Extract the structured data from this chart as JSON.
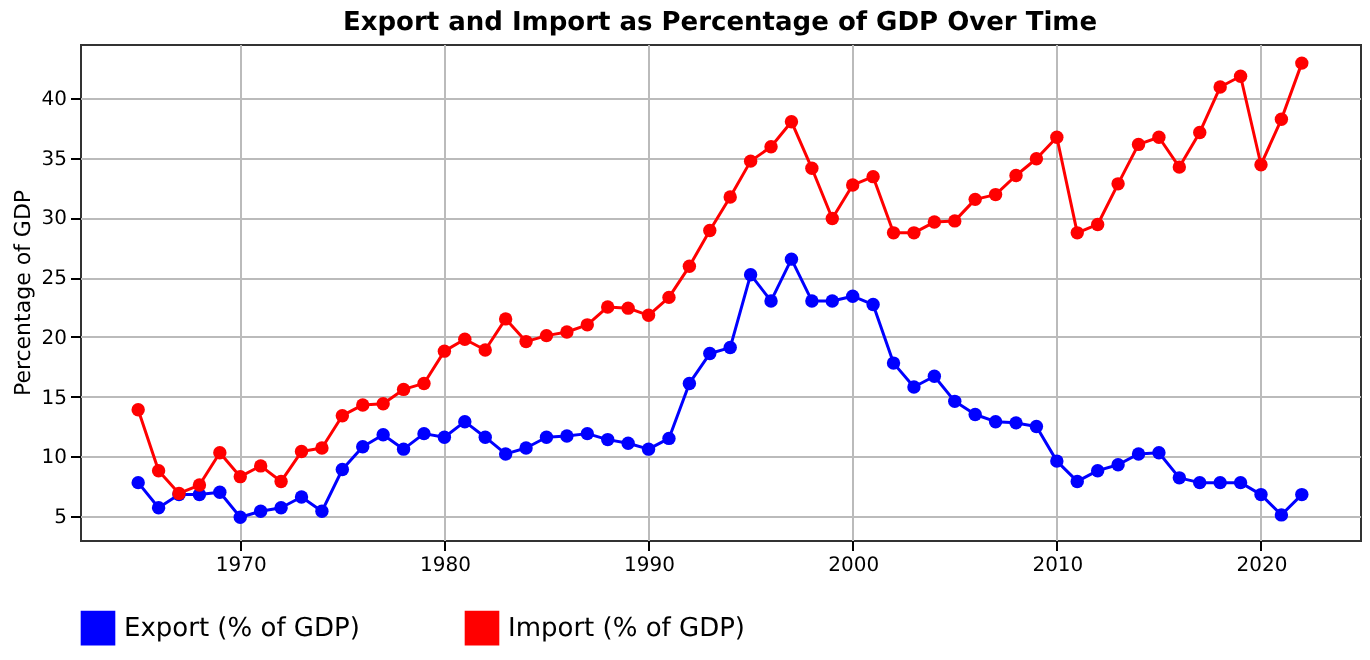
{
  "chart_data": {
    "type": "line",
    "title": "Export and Import as Percentage of GDP Over Time",
    "ylabel": "Percentage of GDP",
    "x": [
      1965,
      1966,
      1967,
      1968,
      1969,
      1970,
      1971,
      1972,
      1973,
      1974,
      1975,
      1976,
      1977,
      1978,
      1979,
      1980,
      1981,
      1982,
      1983,
      1984,
      1985,
      1986,
      1987,
      1988,
      1989,
      1990,
      1991,
      1992,
      1993,
      1994,
      1995,
      1996,
      1997,
      1998,
      1999,
      2000,
      2001,
      2002,
      2003,
      2004,
      2005,
      2006,
      2007,
      2008,
      2009,
      2010,
      2011,
      2012,
      2013,
      2014,
      2015,
      2016,
      2017,
      2018,
      2019,
      2020,
      2021,
      2022
    ],
    "series": [
      {
        "name": "Export (% of GDP)",
        "color": "#0000ff",
        "values": [
          7.8,
          5.7,
          6.8,
          6.8,
          7.0,
          4.9,
          5.4,
          5.7,
          6.6,
          5.4,
          8.9,
          10.8,
          11.8,
          10.6,
          11.9,
          11.6,
          12.9,
          11.6,
          10.2,
          10.7,
          11.6,
          11.7,
          11.9,
          11.4,
          11.1,
          10.6,
          11.5,
          16.1,
          18.6,
          19.1,
          25.2,
          23.0,
          26.5,
          23.0,
          23.0,
          23.4,
          22.7,
          17.8,
          15.8,
          16.7,
          14.6,
          13.5,
          12.9,
          12.8,
          12.5,
          9.6,
          7.9,
          8.8,
          9.3,
          10.2,
          10.3,
          8.2,
          7.8,
          7.8,
          7.8,
          6.8,
          5.1,
          6.8
        ]
      },
      {
        "name": "Import (% of GDP)",
        "color": "#ff0000",
        "values": [
          13.9,
          8.8,
          6.9,
          7.6,
          10.3,
          8.3,
          9.2,
          7.9,
          10.4,
          10.7,
          13.4,
          14.3,
          14.4,
          15.6,
          16.1,
          18.8,
          19.8,
          18.9,
          21.5,
          19.6,
          20.1,
          20.4,
          21.0,
          22.5,
          22.4,
          21.8,
          23.3,
          25.9,
          28.9,
          31.7,
          34.7,
          35.9,
          38.0,
          34.1,
          29.9,
          32.7,
          33.4,
          28.7,
          28.7,
          29.6,
          29.7,
          31.5,
          31.9,
          33.5,
          34.9,
          36.7,
          28.7,
          29.4,
          32.8,
          36.1,
          36.7,
          34.2,
          37.1,
          40.9,
          41.8,
          34.4,
          38.2,
          42.9
        ]
      }
    ],
    "xlim": [
      1962.15,
      2024.85
    ],
    "xticks": [
      1970,
      1980,
      1990,
      2000,
      2010,
      2020
    ],
    "ylim": [
      3.0,
      44.5
    ],
    "yticks": [
      5,
      10,
      15,
      20,
      25,
      30,
      35,
      40
    ],
    "grid": true,
    "legend": "bottom",
    "marker": "circle",
    "line_style": "solid"
  }
}
